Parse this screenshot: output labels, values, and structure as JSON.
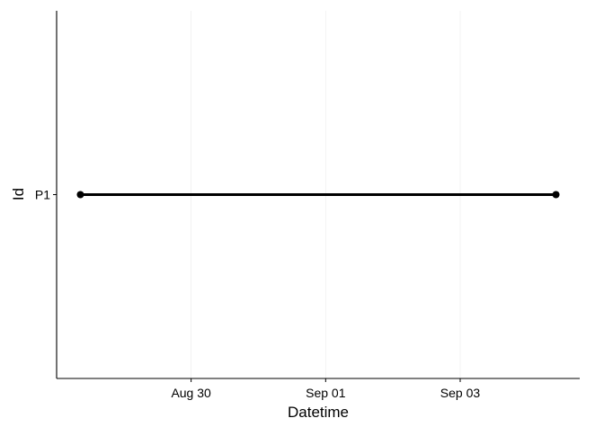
{
  "chart_data": {
    "type": "line",
    "title": "",
    "xlabel": "Datetime",
    "ylabel": "Id",
    "categories": [
      "P1"
    ],
    "x_ticks": [
      {
        "label": "Aug 30",
        "value": "2024-08-30T00:00"
      },
      {
        "label": "Sep 01",
        "value": "2024-09-01T00:00"
      },
      {
        "label": "Sep 03",
        "value": "2024-09-03T00:00"
      }
    ],
    "series": [
      {
        "id": "P1",
        "points": [
          {
            "x": "2024-08-28T08:30",
            "y": "P1"
          },
          {
            "x": "2024-09-04T10:10",
            "y": "P1"
          }
        ]
      }
    ],
    "grid": "vertical major lines only (faint)",
    "legend": "none",
    "colors": {
      "line": "#000000",
      "grid": "#ebebeb",
      "axis": "#000000"
    }
  }
}
